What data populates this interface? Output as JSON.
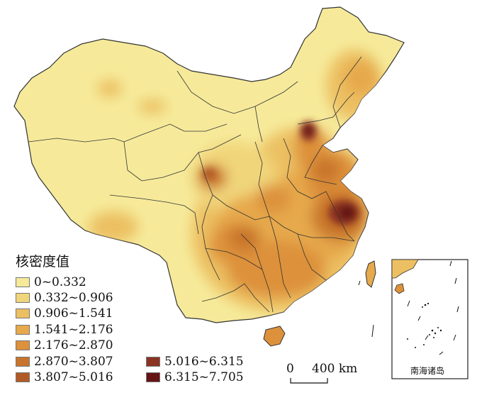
{
  "legend": {
    "title": "核密度值",
    "classes": [
      {
        "label": "0~0.332",
        "color": "#f6ea9a"
      },
      {
        "label": "0.332~0.906",
        "color": "#f1d57a"
      },
      {
        "label": "0.906~1.541",
        "color": "#ecc062"
      },
      {
        "label": "1.541~2.176",
        "color": "#e6a94c"
      },
      {
        "label": "2.176~2.870",
        "color": "#dd913a"
      },
      {
        "label": "2.870~3.807",
        "color": "#c8742c"
      },
      {
        "label": "3.807~5.016",
        "color": "#b05a28"
      },
      {
        "label": "5.016~6.315",
        "color": "#8a3322"
      },
      {
        "label": "6.315~7.705",
        "color": "#641414"
      }
    ]
  },
  "scale_bar": {
    "start": "0",
    "end": "400 km"
  },
  "inset": {
    "label": "南海诸岛"
  }
}
